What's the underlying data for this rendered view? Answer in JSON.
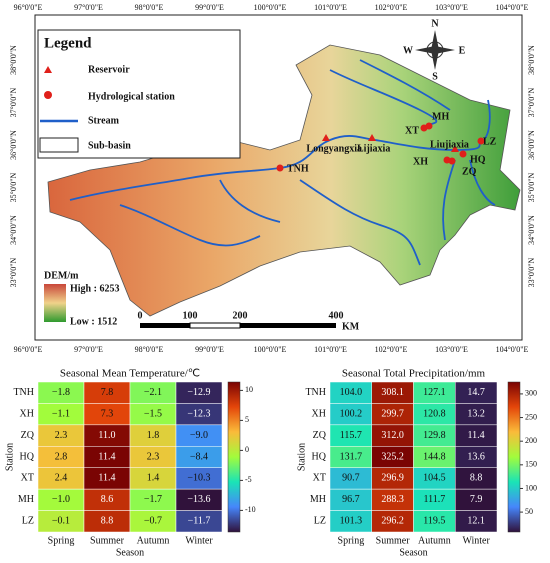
{
  "map": {
    "legend_title": "Legend",
    "legend_items": [
      "Reservoir",
      "Hydrological station",
      "Stream",
      "Sub-basin"
    ],
    "dem_title": "DEM/m",
    "dem_high": "High : 6253",
    "dem_low": "Low : 1512",
    "scale_labels": [
      "0",
      "100",
      "200",
      "400",
      "KM"
    ],
    "compass": [
      "N",
      "S",
      "E",
      "W"
    ],
    "lon_labels": [
      "96°0'0\"E",
      "97°0'0\"E",
      "98°0'0\"E",
      "99°0'0\"E",
      "100°0'0\"E",
      "101°0'0\"E",
      "102°0'0\"E",
      "103°0'0\"E",
      "104°0'0\"E"
    ],
    "lat_labels": [
      "38°0'0\"N",
      "37°0'0\"N",
      "36°0'0\"N",
      "35°0'0\"N",
      "34°0'0\"N",
      "33°0'0\"N"
    ],
    "reservoirs": [
      "Longyangxia",
      "Lijiaxia",
      "Liujiaxia"
    ],
    "stations": [
      "TNH",
      "XH",
      "ZQ",
      "HQ",
      "XT",
      "MH",
      "LZ"
    ]
  },
  "chart_data": [
    {
      "type": "heatmap",
      "title": "Seasonal Mean Temperature/℃",
      "x_label": "Season",
      "y_label": "Station",
      "x": [
        "Spring",
        "Summer",
        "Autumn",
        "Winter"
      ],
      "y": [
        "TNH",
        "XH",
        "ZQ",
        "HQ",
        "XT",
        "MH",
        "LZ"
      ],
      "values": [
        [
          -1.8,
          7.8,
          -2.1,
          -12.9
        ],
        [
          -1.1,
          7.3,
          -1.5,
          -12.3
        ],
        [
          2.3,
          11.0,
          1.8,
          -9.0
        ],
        [
          2.8,
          11.4,
          2.3,
          -8.4
        ],
        [
          2.4,
          11.4,
          1.4,
          -10.3
        ],
        [
          -1.0,
          8.6,
          -1.7,
          -13.6
        ],
        [
          -0.1,
          8.8,
          -0.7,
          -11.7
        ]
      ],
      "value_labels": [
        [
          "−1.8",
          "7.8",
          "−2.1",
          "−12.9"
        ],
        [
          "−1.1",
          "7.3",
          "−1.5",
          "−12.3"
        ],
        [
          "2.3",
          "11.0",
          "1.8",
          "−9.0"
        ],
        [
          "2.8",
          "11.4",
          "2.3",
          "−8.4"
        ],
        [
          "2.4",
          "11.4",
          "1.4",
          "−10.3"
        ],
        [
          "−1.0",
          "8.6",
          "−1.7",
          "−13.6"
        ],
        [
          "−0.1",
          "8.8",
          "−0.7",
          "−11.7"
        ]
      ],
      "zlim": [
        -13.6,
        11.4
      ],
      "zticks": [
        10,
        5,
        0,
        -5,
        -10
      ],
      "colormap": [
        "#30123b",
        "#4686fb",
        "#1ae4b6",
        "#a2fc3c",
        "#fabb3a",
        "#e4460a",
        "#7a0403"
      ]
    },
    {
      "type": "heatmap",
      "title": "Seasonal Total Precipitation/mm",
      "x_label": "Season",
      "y_label": "Station",
      "x": [
        "Spring",
        "Summer",
        "Autumn",
        "Winter"
      ],
      "y": [
        "TNH",
        "XH",
        "ZQ",
        "HQ",
        "XT",
        "MH",
        "LZ"
      ],
      "values": [
        [
          104.0,
          308.1,
          127.1,
          14.7
        ],
        [
          100.2,
          299.7,
          120.8,
          13.2
        ],
        [
          115.7,
          312.0,
          129.8,
          11.4
        ],
        [
          131.7,
          325.2,
          144.8,
          13.6
        ],
        [
          90.7,
          296.9,
          104.5,
          8.8
        ],
        [
          96.7,
          288.3,
          111.7,
          7.9
        ],
        [
          101.3,
          296.2,
          119.5,
          12.1
        ]
      ],
      "value_labels": [
        [
          "104.0",
          "308.1",
          "127.1",
          "14.7"
        ],
        [
          "100.2",
          "299.7",
          "120.8",
          "13.2"
        ],
        [
          "115.7",
          "312.0",
          "129.8",
          "11.4"
        ],
        [
          "131.7",
          "325.2",
          "144.8",
          "13.6"
        ],
        [
          "90.7",
          "296.9",
          "104.5",
          "8.8"
        ],
        [
          "96.7",
          "288.3",
          "111.7",
          "7.9"
        ],
        [
          "101.3",
          "296.2",
          "119.5",
          "12.1"
        ]
      ],
      "zlim": [
        7.9,
        325.2
      ],
      "zticks": [
        50,
        100,
        150,
        200,
        250,
        300
      ],
      "colormap": [
        "#30123b",
        "#4686fb",
        "#1ae4b6",
        "#a2fc3c",
        "#fabb3a",
        "#e4460a",
        "#7a0403"
      ]
    }
  ]
}
